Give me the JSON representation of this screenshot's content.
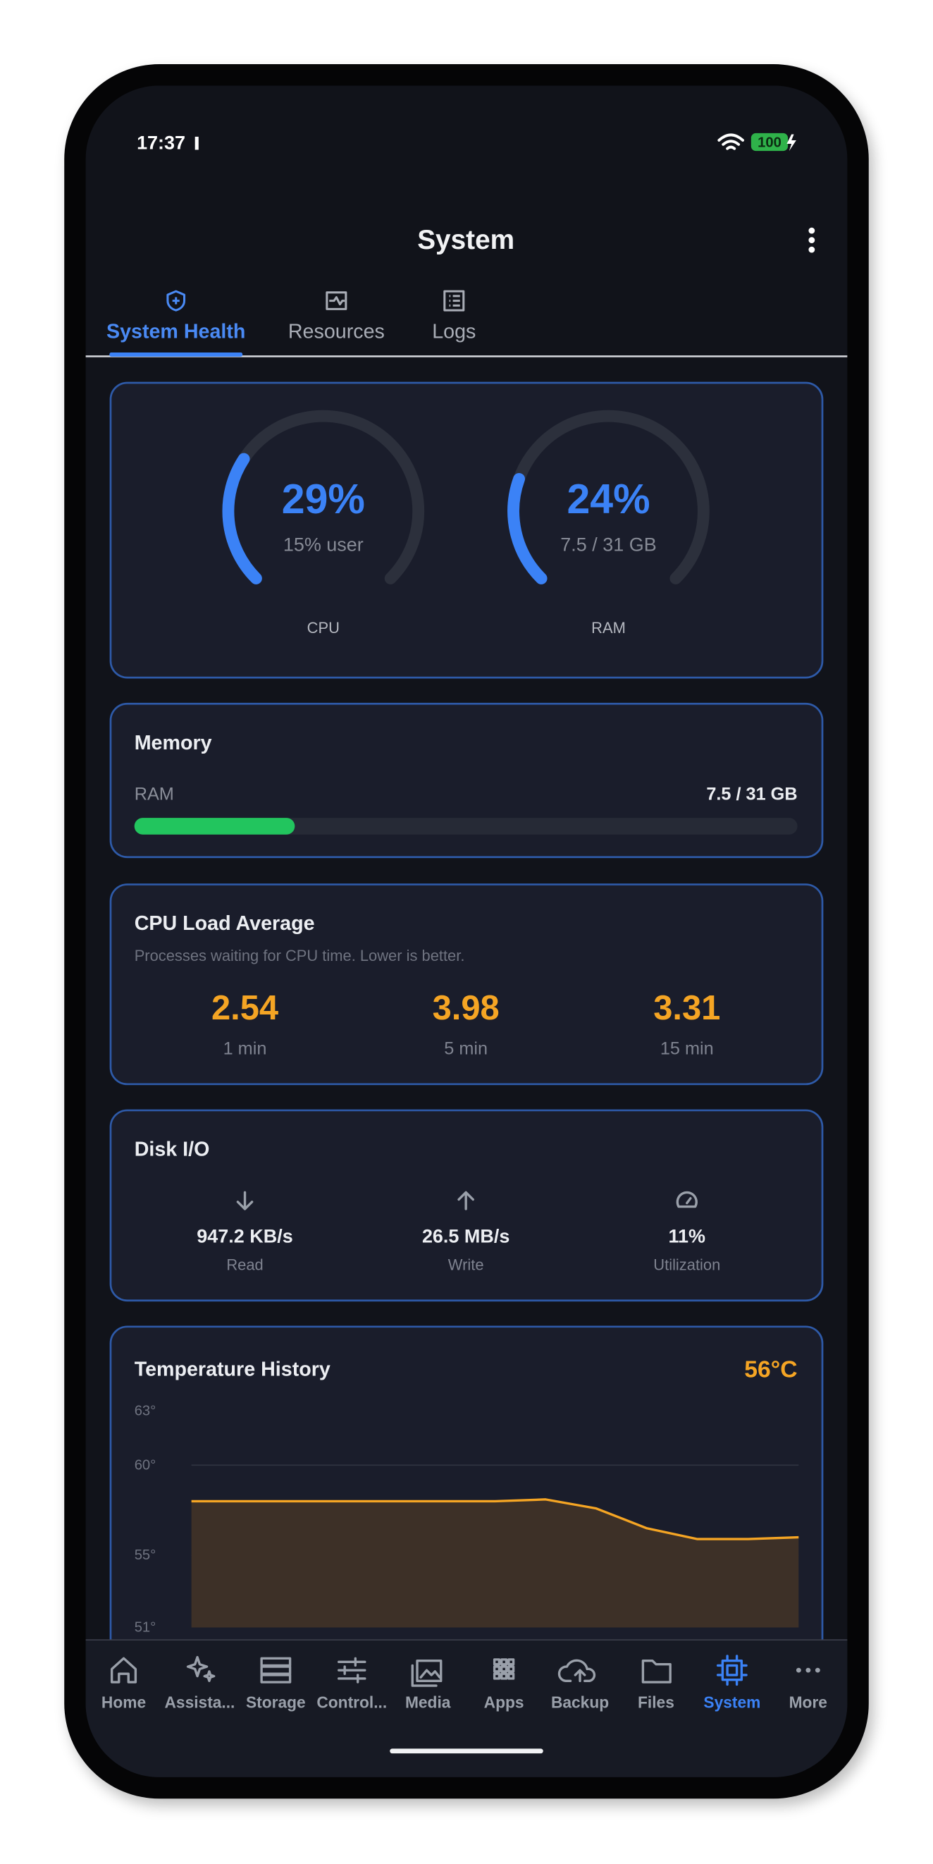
{
  "status_bar": {
    "time": "17:37",
    "battery": "100"
  },
  "header": {
    "title": "System"
  },
  "tabs": [
    {
      "label": "System Health",
      "active": true
    },
    {
      "label": "Resources",
      "active": false
    },
    {
      "label": "Logs",
      "active": false
    }
  ],
  "gauges": [
    {
      "value": 29,
      "label": "29%",
      "detail": "15% user",
      "name": "CPU"
    },
    {
      "value": 24,
      "label": "24%",
      "detail": "7.5 / 31 GB",
      "name": "RAM"
    }
  ],
  "memory": {
    "title": "Memory",
    "label": "RAM",
    "used": 7.5,
    "total": 31,
    "value_label": "7.5 / 31 GB"
  },
  "cpu_load": {
    "title": "CPU Load Average",
    "subtitle": "Processes waiting for CPU time. Lower is better.",
    "items": [
      {
        "value": 2.54,
        "label": "1 min"
      },
      {
        "value": 3.98,
        "label": "5 min"
      },
      {
        "value": 3.31,
        "label": "15 min"
      }
    ]
  },
  "disk_io": {
    "title": "Disk I/O",
    "items": [
      {
        "value": "947.2 KB/s",
        "label": "Read"
      },
      {
        "value": "26.5 MB/s",
        "label": "Write"
      },
      {
        "value": "11%",
        "label": "Utilization"
      }
    ]
  },
  "temperature": {
    "title": "Temperature History",
    "current": {
      "value": 56,
      "label": "56°C"
    },
    "chart": {
      "type": "line",
      "color": "#f5a524",
      "values": [
        58,
        58,
        58,
        58,
        58,
        58,
        58,
        58.1,
        57.6,
        56.5,
        55.9,
        55.9,
        56
      ],
      "ylim": [
        51,
        63
      ],
      "yticks": [
        {
          "value": 63,
          "label": "63°"
        },
        {
          "value": 60,
          "label": "60°"
        },
        {
          "value": 55,
          "label": "55°"
        },
        {
          "value": 51,
          "label": "51°"
        }
      ]
    }
  },
  "nav": [
    {
      "label": "Home",
      "active": false
    },
    {
      "label": "Assista...",
      "active": false
    },
    {
      "label": "Storage",
      "active": false
    },
    {
      "label": "Control...",
      "active": false
    },
    {
      "label": "Media",
      "active": false
    },
    {
      "label": "Apps",
      "active": false
    },
    {
      "label": "Backup",
      "active": false
    },
    {
      "label": "Files",
      "active": false
    },
    {
      "label": "System",
      "active": true
    },
    {
      "label": "More",
      "active": false
    }
  ]
}
